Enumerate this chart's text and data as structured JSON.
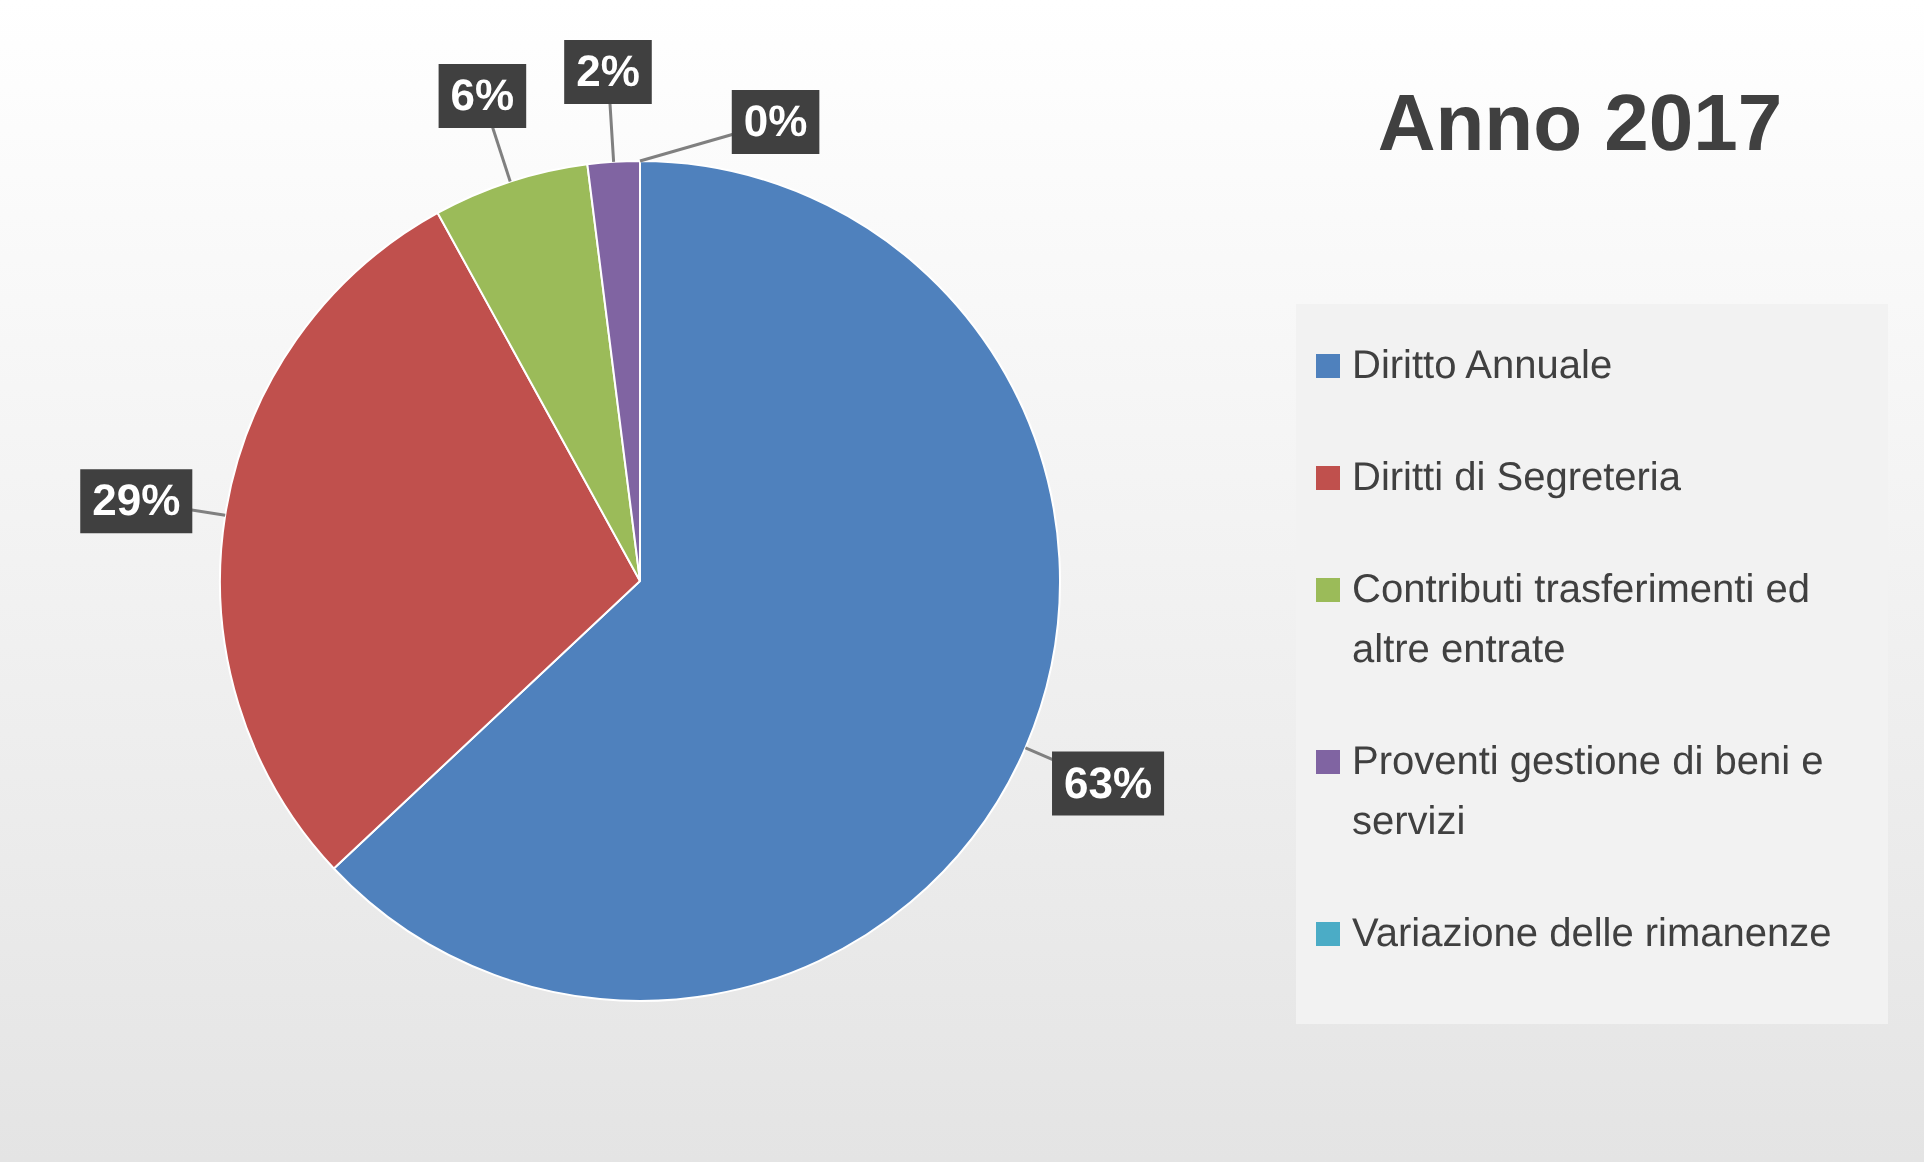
{
  "chart_data": {
    "type": "pie",
    "title": "Anno 2017",
    "categories": [
      "Diritto Annuale",
      "Diritti di Segreteria",
      "Contributi trasferimenti ed altre entrate",
      "Proventi gestione di beni e servizi",
      "Variazione delle rimanenze"
    ],
    "values": [
      63,
      29,
      6,
      2,
      0
    ],
    "colors": [
      "#4f81bd",
      "#c0504d",
      "#9bbb59",
      "#8064a2",
      "#4bacc6"
    ],
    "value_labels": [
      "63%",
      "29%",
      "6%",
      "2%",
      "0%"
    ],
    "legend": "right"
  }
}
